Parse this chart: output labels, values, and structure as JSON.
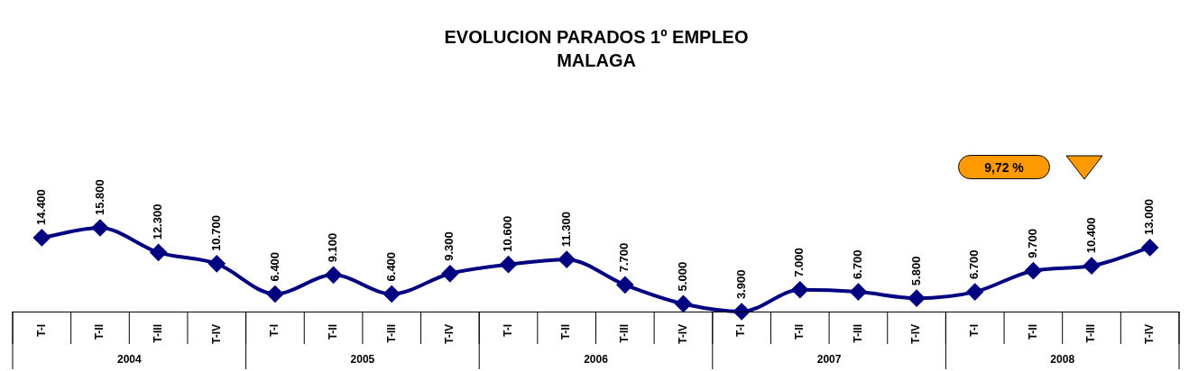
{
  "chart_data": {
    "type": "line",
    "title": "EVOLUCION PARADOS 1º EMPLEO",
    "subtitle": "MALAGA",
    "categories": [
      "T-I",
      "T-II",
      "T-III",
      "T-IV",
      "T-I",
      "T-II",
      "T-III",
      "T-IV",
      "T-I",
      "T-II",
      "T-III",
      "T-IV",
      "T-I",
      "T-II",
      "T-III",
      "T-IV",
      "T-I",
      "T-II",
      "T-III",
      "T-IV"
    ],
    "series": [
      {
        "color": "#000080",
        "values": [
          14400,
          15800,
          12300,
          10700,
          6400,
          9100,
          6400,
          9300,
          10600,
          11300,
          7700,
          5000,
          3900,
          7000,
          6700,
          5800,
          6700,
          9700,
          10400,
          13000
        ],
        "value_labels": [
          "14.400",
          "15.800",
          "12.300",
          "10.700",
          "6.400",
          "9.100",
          "6.400",
          "9.300",
          "10.600",
          "11.300",
          "7.700",
          "5.000",
          "3.900",
          "7.000",
          "6.700",
          "5.800",
          "6.700",
          "9.700",
          "10.400",
          "13.000"
        ]
      }
    ],
    "annotations": [
      "9,72 %",
      "2004",
      "2005",
      "2006",
      "2007",
      "2008"
    ],
    "tick_labels": "x",
    "marker": "diamond",
    "line_style": "solid",
    "grid": false,
    "legend": false
  }
}
